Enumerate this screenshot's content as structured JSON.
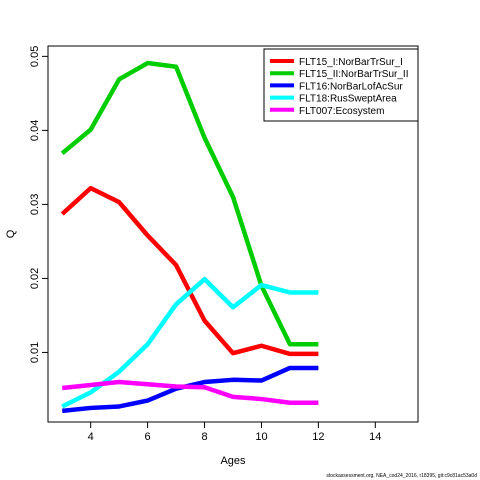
{
  "chart_data": {
    "type": "line",
    "title": "",
    "xlabel": "Ages",
    "ylabel": "Q",
    "xlim": [
      2.5,
      15.5
    ],
    "ylim": [
      0.0006,
      0.0514
    ],
    "xticks": [
      4,
      6,
      8,
      10,
      12,
      14
    ],
    "yticks": [
      0.01,
      0.02,
      0.03,
      0.04,
      0.05
    ],
    "ytick_labels": [
      "0.01",
      "0.02",
      "0.03",
      "0.04",
      "0.05"
    ],
    "legend_position": "top-right",
    "grid": false,
    "x": [
      3,
      4,
      5,
      6,
      7,
      8,
      9,
      10,
      11,
      12
    ],
    "series": [
      {
        "name": "FLT15_I:NorBarTrSur_I",
        "color": "#ff0000",
        "values": [
          0.0287,
          0.0322,
          0.0303,
          0.0258,
          0.0218,
          0.0143,
          0.0099,
          0.0109,
          0.0098,
          0.0098
        ]
      },
      {
        "name": "FLT15_II:NorBarTrSur_II",
        "color": "#00cd00",
        "values": [
          0.0369,
          0.0401,
          0.0469,
          0.0491,
          0.0486,
          0.039,
          0.031,
          0.019,
          0.0111,
          0.0111
        ]
      },
      {
        "name": "FLT16:NorBarLofAcSur",
        "color": "#0000ff",
        "values": [
          0.0021,
          0.0025,
          0.0027,
          0.0035,
          0.0051,
          0.006,
          0.0063,
          0.0062,
          0.0079,
          0.0079
        ]
      },
      {
        "name": "FLT18:RusSweptArea",
        "color": "#00ffff",
        "values": [
          0.0027,
          0.0046,
          0.0074,
          0.0111,
          0.0165,
          0.0199,
          0.0161,
          0.0191,
          0.0181,
          0.0181
        ]
      },
      {
        "name": "FLT007:Ecosystem",
        "color": "#ff00ff",
        "values": [
          0.0052,
          0.0056,
          0.006,
          0.0057,
          0.0054,
          0.0053,
          0.004,
          0.0037,
          0.0032,
          0.0032
        ]
      }
    ]
  },
  "footer": "stockassessment.org, NEA_cod24_2016, r18395, git:c9c81ac53a0d"
}
